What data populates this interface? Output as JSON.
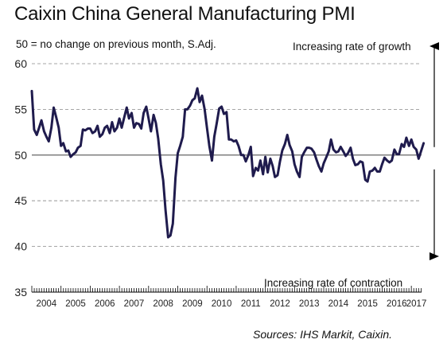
{
  "chart_data": {
    "type": "line",
    "title": "Caixin China General Manufacturing PMI",
    "subtitle": "50 = no change on previous month, S.Adj.",
    "source": "Sources: IHS Markit, Caixin.",
    "annotations": {
      "top": "Increasing rate of growth",
      "bottom": "Increasing rate of contraction"
    },
    "ylim": [
      35,
      60
    ],
    "yticks": [
      "60",
      "55",
      "50",
      "45",
      "40",
      "35"
    ],
    "reference_line": 50,
    "xlim": [
      2004.0,
      2017.35
    ],
    "year_labels": [
      "2004",
      "2005",
      "2006",
      "2007",
      "2008",
      "2009",
      "2010",
      "2011",
      "2012",
      "2013",
      "2014",
      "2015",
      "2016",
      "2017"
    ],
    "grid": "horizontal-dashed",
    "series": [
      {
        "color": "#1f1b4d",
        "points": [
          [
            2004.0,
            57.0
          ],
          [
            2004.08,
            52.8
          ],
          [
            2004.17,
            52.2
          ],
          [
            2004.25,
            53.0
          ],
          [
            2004.33,
            53.8
          ],
          [
            2004.42,
            52.6
          ],
          [
            2004.5,
            52.0
          ],
          [
            2004.58,
            51.5
          ],
          [
            2004.67,
            53.0
          ],
          [
            2004.75,
            55.2
          ],
          [
            2004.83,
            54.2
          ],
          [
            2004.92,
            53.0
          ],
          [
            2005.0,
            51.0
          ],
          [
            2005.08,
            51.3
          ],
          [
            2005.17,
            50.4
          ],
          [
            2005.25,
            50.5
          ],
          [
            2005.33,
            49.8
          ],
          [
            2005.42,
            50.1
          ],
          [
            2005.5,
            50.3
          ],
          [
            2005.58,
            50.8
          ],
          [
            2005.67,
            51.0
          ],
          [
            2005.75,
            52.8
          ],
          [
            2005.83,
            52.7
          ],
          [
            2005.92,
            52.9
          ],
          [
            2006.0,
            52.9
          ],
          [
            2006.08,
            52.4
          ],
          [
            2006.17,
            52.6
          ],
          [
            2006.25,
            53.2
          ],
          [
            2006.33,
            52.0
          ],
          [
            2006.42,
            52.3
          ],
          [
            2006.5,
            53.0
          ],
          [
            2006.58,
            53.2
          ],
          [
            2006.67,
            52.4
          ],
          [
            2006.75,
            53.6
          ],
          [
            2006.83,
            52.6
          ],
          [
            2006.92,
            53.0
          ],
          [
            2007.0,
            54.0
          ],
          [
            2007.08,
            53.0
          ],
          [
            2007.17,
            54.2
          ],
          [
            2007.25,
            55.2
          ],
          [
            2007.33,
            54.0
          ],
          [
            2007.42,
            54.6
          ],
          [
            2007.5,
            53.0
          ],
          [
            2007.58,
            53.5
          ],
          [
            2007.67,
            53.4
          ],
          [
            2007.75,
            52.9
          ],
          [
            2007.83,
            54.6
          ],
          [
            2007.92,
            55.3
          ],
          [
            2008.0,
            54.0
          ],
          [
            2008.08,
            52.6
          ],
          [
            2008.17,
            54.4
          ],
          [
            2008.25,
            53.5
          ],
          [
            2008.33,
            51.8
          ],
          [
            2008.42,
            49.0
          ],
          [
            2008.5,
            47.2
          ],
          [
            2008.58,
            44.0
          ],
          [
            2008.67,
            41.0
          ],
          [
            2008.75,
            41.2
          ],
          [
            2008.83,
            42.5
          ],
          [
            2008.92,
            47.5
          ],
          [
            2009.0,
            50.2
          ],
          [
            2009.08,
            51.0
          ],
          [
            2009.17,
            52.0
          ],
          [
            2009.25,
            55.0
          ],
          [
            2009.33,
            55.0
          ],
          [
            2009.42,
            55.4
          ],
          [
            2009.5,
            56.0
          ],
          [
            2009.58,
            56.2
          ],
          [
            2009.67,
            57.3
          ],
          [
            2009.75,
            55.8
          ],
          [
            2009.83,
            56.5
          ],
          [
            2009.92,
            55.0
          ],
          [
            2010.0,
            53.0
          ],
          [
            2010.08,
            51.0
          ],
          [
            2010.17,
            49.4
          ],
          [
            2010.25,
            52.0
          ],
          [
            2010.33,
            53.4
          ],
          [
            2010.42,
            55.1
          ],
          [
            2010.5,
            55.3
          ],
          [
            2010.58,
            54.5
          ],
          [
            2010.67,
            54.7
          ],
          [
            2010.75,
            51.7
          ],
          [
            2010.83,
            51.7
          ],
          [
            2010.92,
            51.5
          ],
          [
            2011.0,
            51.6
          ],
          [
            2011.08,
            51.0
          ],
          [
            2011.17,
            50.0
          ],
          [
            2011.25,
            50.0
          ],
          [
            2011.33,
            49.3
          ],
          [
            2011.42,
            50.0
          ],
          [
            2011.5,
            50.9
          ],
          [
            2011.58,
            47.7
          ],
          [
            2011.67,
            48.6
          ],
          [
            2011.75,
            48.3
          ],
          [
            2011.83,
            49.4
          ],
          [
            2011.92,
            47.9
          ],
          [
            2012.0,
            49.8
          ],
          [
            2012.08,
            48.1
          ],
          [
            2012.17,
            49.6
          ],
          [
            2012.25,
            48.8
          ],
          [
            2012.33,
            47.6
          ],
          [
            2012.42,
            47.8
          ],
          [
            2012.5,
            49.3
          ],
          [
            2012.58,
            50.5
          ],
          [
            2012.67,
            51.2
          ],
          [
            2012.75,
            52.2
          ],
          [
            2012.83,
            51.1
          ],
          [
            2012.92,
            50.4
          ],
          [
            2013.0,
            49.0
          ],
          [
            2013.08,
            48.2
          ],
          [
            2013.17,
            47.6
          ],
          [
            2013.25,
            49.8
          ],
          [
            2013.33,
            50.3
          ],
          [
            2013.42,
            50.8
          ],
          [
            2013.5,
            50.8
          ],
          [
            2013.58,
            50.7
          ],
          [
            2013.67,
            50.3
          ],
          [
            2013.75,
            49.5
          ],
          [
            2013.83,
            48.8
          ],
          [
            2013.92,
            48.2
          ],
          [
            2014.0,
            49.1
          ],
          [
            2014.08,
            49.7
          ],
          [
            2014.17,
            50.4
          ],
          [
            2014.25,
            51.7
          ],
          [
            2014.33,
            50.6
          ],
          [
            2014.42,
            50.3
          ],
          [
            2014.5,
            50.4
          ],
          [
            2014.58,
            50.9
          ],
          [
            2014.67,
            50.4
          ],
          [
            2014.75,
            49.9
          ],
          [
            2014.83,
            50.2
          ],
          [
            2014.92,
            50.8
          ],
          [
            2015.0,
            49.6
          ],
          [
            2015.08,
            48.9
          ],
          [
            2015.17,
            49.0
          ],
          [
            2015.25,
            49.3
          ],
          [
            2015.33,
            49.2
          ],
          [
            2015.42,
            47.3
          ],
          [
            2015.5,
            47.1
          ],
          [
            2015.58,
            48.2
          ],
          [
            2015.67,
            48.3
          ],
          [
            2015.75,
            48.6
          ],
          [
            2015.83,
            48.2
          ],
          [
            2015.92,
            48.2
          ],
          [
            2016.0,
            49.0
          ],
          [
            2016.08,
            49.7
          ],
          [
            2016.17,
            49.4
          ],
          [
            2016.25,
            49.2
          ],
          [
            2016.33,
            49.4
          ],
          [
            2016.42,
            50.6
          ],
          [
            2016.5,
            50.1
          ],
          [
            2016.58,
            50.1
          ],
          [
            2016.67,
            51.2
          ],
          [
            2016.75,
            50.9
          ],
          [
            2016.83,
            51.9
          ],
          [
            2016.92,
            51.0
          ],
          [
            2017.0,
            51.7
          ],
          [
            2017.08,
            50.9
          ],
          [
            2017.17,
            50.6
          ],
          [
            2017.25,
            49.6
          ],
          [
            2017.33,
            50.4
          ],
          [
            2017.42,
            51.3
          ]
        ]
      }
    ]
  }
}
